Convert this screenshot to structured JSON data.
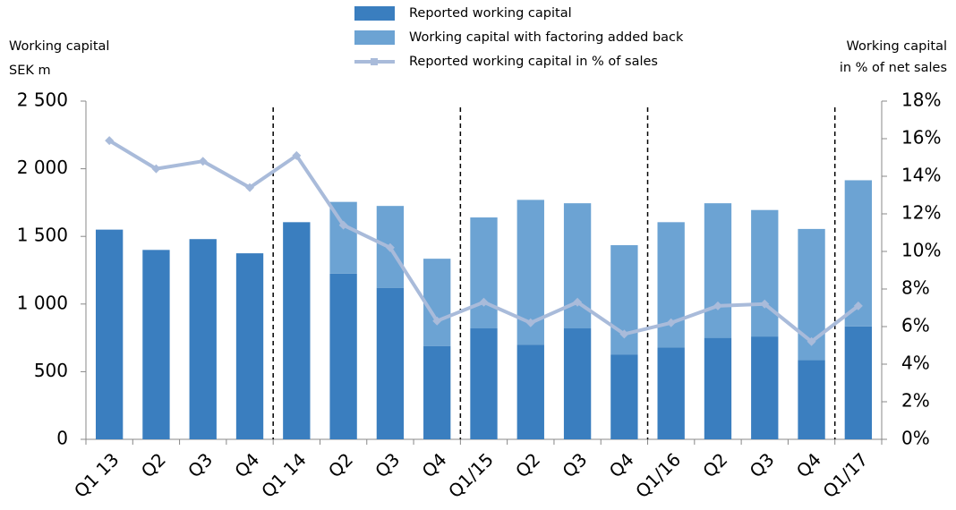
{
  "chart_data": {
    "type": "bar",
    "stacked": true,
    "legend_position": "top",
    "y_axis_title": [
      "Working capital",
      "SEK m"
    ],
    "y2_axis_title": [
      "Working capital",
      "in % of net sales"
    ],
    "categories": [
      "Q1 13",
      "Q2",
      "Q3",
      "Q4",
      "Q1 14",
      "Q2",
      "Q3",
      "Q4",
      "Q1/15",
      "Q2",
      "Q3",
      "Q4",
      "Q1/16",
      "Q2",
      "Q3",
      "Q4",
      "Q1/17"
    ],
    "series": [
      {
        "name": "Reported working capital",
        "type": "bar",
        "color": "#3a7ebf",
        "values": [
          1550,
          1400,
          1480,
          1375,
          1605,
          1225,
          1120,
          690,
          820,
          700,
          820,
          625,
          680,
          750,
          760,
          585,
          835
        ]
      },
      {
        "name": "Working capital with factoring added back",
        "type": "bar",
        "color": "#6ca3d3",
        "values": [
          null,
          null,
          null,
          null,
          null,
          530,
          605,
          645,
          820,
          1070,
          925,
          810,
          925,
          995,
          935,
          970,
          1080
        ]
      },
      {
        "name": "Reported working capital in % of sales",
        "type": "line",
        "axis": "y2",
        "color": "#a9bbda",
        "values": [
          15.9,
          14.4,
          14.8,
          13.4,
          15.1,
          11.4,
          10.2,
          6.3,
          7.3,
          6.2,
          7.3,
          5.6,
          6.2,
          7.1,
          7.2,
          5.2,
          7.1
        ]
      }
    ],
    "ylim": [
      0,
      2500
    ],
    "yticks": [
      0,
      500,
      {
        "value": 1000,
        "label": "1 000"
      },
      {
        "value": 1500,
        "label": "1 500"
      },
      {
        "value": 2000,
        "label": "2 000"
      },
      {
        "value": 2500,
        "label": "2 500"
      }
    ],
    "y2lim": [
      0,
      18
    ],
    "y2ticks": [
      {
        "value": 0,
        "label": "0%"
      },
      {
        "value": 2,
        "label": "2%"
      },
      {
        "value": 4,
        "label": "4%"
      },
      {
        "value": 6,
        "label": "6%"
      },
      {
        "value": 8,
        "label": "8%"
      },
      {
        "value": 10,
        "label": "10%"
      },
      {
        "value": 12,
        "label": "12%"
      },
      {
        "value": 14,
        "label": "14%"
      },
      {
        "value": 16,
        "label": "16%"
      },
      {
        "value": 18,
        "label": "18%"
      }
    ]
  }
}
